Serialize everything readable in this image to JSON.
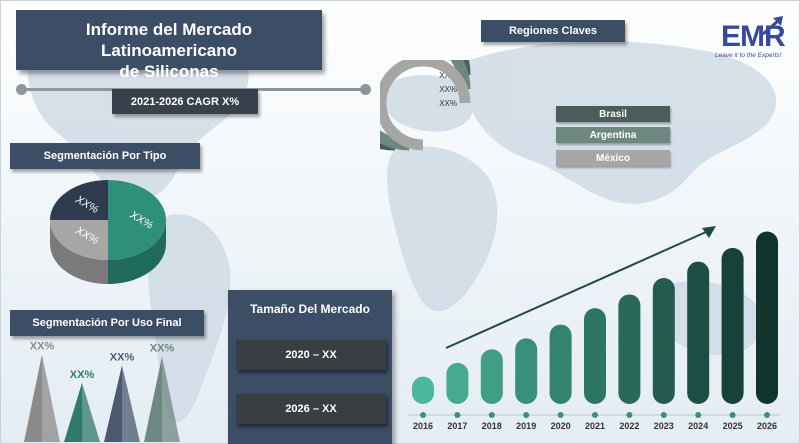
{
  "header": {
    "title_line1": "Informe del Mercado Latinoamericano",
    "title_line2": "de Siliconas",
    "cagr_label": "2021-2026 CAGR X%"
  },
  "logo": {
    "text": "EMR",
    "tagline": "Leave it to the Experts!",
    "icon": "arrow-up-icon"
  },
  "sections": {
    "segment_type": "Segmentación Por Tipo",
    "segment_use": "Segmentación Por Uso Final",
    "regions": "Regiones Claves",
    "market_size": "Tamaño Del Mercado"
  },
  "market_size": {
    "rows": [
      "2020 – XX",
      "2026 – XX"
    ]
  },
  "colors": {
    "header_bg": "#3c4d66",
    "pie": [
      "#2f8f7a",
      "#a6a6a6",
      "#2e3a4e"
    ],
    "regions": [
      "#4b5d5a",
      "#6f8781",
      "#a6a6a6"
    ]
  },
  "chart_data": [
    {
      "type": "pie",
      "name": "segmentacion_tipo",
      "title": "Segmentación Por Tipo",
      "labels": [
        "XX%",
        "XX%",
        "XX%"
      ],
      "values": [
        50,
        25,
        25
      ]
    },
    {
      "type": "bar",
      "name": "segmentacion_uso_final",
      "title": "Segmentación Por Uso Final",
      "labels": [
        "XX%",
        "XX%",
        "XX%",
        "XX%"
      ],
      "values": [
        4.0,
        2.7,
        3.5,
        3.9
      ],
      "colors": [
        "#8a8a8a",
        "#2f7a6f",
        "#4a5870",
        "#6f8781"
      ]
    },
    {
      "type": "pie",
      "name": "regiones_claves",
      "title": "Regiones Claves",
      "labels": [
        "XX%",
        "XX%",
        "XX%"
      ],
      "legend": [
        "Brasil",
        "Argentina",
        "México"
      ],
      "values": [
        75,
        75,
        75
      ]
    },
    {
      "type": "bar",
      "name": "tamano_mercado",
      "categories": [
        "2016",
        "2017",
        "2018",
        "2019",
        "2020",
        "2021",
        "2022",
        "2023",
        "2024",
        "2025",
        "2026"
      ],
      "values": [
        1.0,
        1.5,
        2.0,
        2.4,
        2.9,
        3.5,
        4.0,
        4.6,
        5.2,
        5.7,
        6.3
      ],
      "ylim": [
        0,
        6.5
      ]
    }
  ]
}
